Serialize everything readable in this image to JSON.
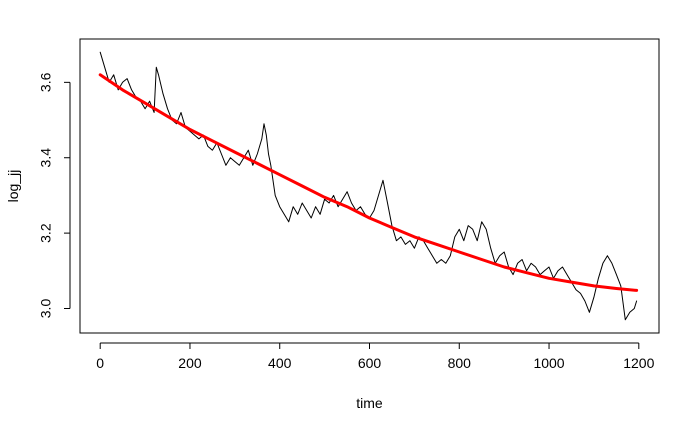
{
  "chart_data": {
    "type": "line",
    "title": "",
    "xlabel": "time",
    "ylabel": "log_jj",
    "xlim": [
      -45,
      1245
    ],
    "ylim": [
      2.935,
      3.715
    ],
    "xticks": [
      0,
      200,
      400,
      600,
      800,
      1000,
      1200
    ],
    "yticks": [
      3.0,
      3.2,
      3.4,
      3.6
    ],
    "ytick_labels": [
      "3.0",
      "3.2",
      "3.4",
      "3.6"
    ],
    "grid": false,
    "legend": "none",
    "series": [
      {
        "style": "thin-line",
        "color": "#000000",
        "x": [
          0,
          10,
          20,
          30,
          40,
          50,
          60,
          70,
          80,
          90,
          100,
          110,
          120,
          125,
          130,
          140,
          150,
          160,
          170,
          180,
          190,
          200,
          210,
          220,
          230,
          240,
          250,
          260,
          270,
          280,
          290,
          300,
          310,
          320,
          330,
          340,
          350,
          360,
          365,
          370,
          375,
          380,
          390,
          400,
          410,
          420,
          430,
          440,
          450,
          460,
          470,
          480,
          490,
          500,
          510,
          520,
          530,
          540,
          550,
          560,
          570,
          580,
          590,
          600,
          610,
          620,
          630,
          640,
          650,
          660,
          670,
          680,
          690,
          700,
          710,
          720,
          730,
          740,
          750,
          760,
          770,
          780,
          790,
          800,
          810,
          820,
          830,
          840,
          850,
          860,
          870,
          880,
          890,
          900,
          910,
          920,
          930,
          940,
          950,
          960,
          970,
          980,
          990,
          1000,
          1010,
          1020,
          1030,
          1040,
          1050,
          1060,
          1070,
          1080,
          1090,
          1100,
          1110,
          1120,
          1130,
          1140,
          1150,
          1160,
          1170,
          1180,
          1190,
          1195
        ],
        "y": [
          3.68,
          3.64,
          3.6,
          3.62,
          3.58,
          3.6,
          3.61,
          3.58,
          3.56,
          3.55,
          3.53,
          3.55,
          3.52,
          3.64,
          3.62,
          3.57,
          3.53,
          3.5,
          3.49,
          3.52,
          3.48,
          3.47,
          3.46,
          3.45,
          3.46,
          3.43,
          3.42,
          3.44,
          3.41,
          3.38,
          3.4,
          3.39,
          3.38,
          3.4,
          3.42,
          3.38,
          3.41,
          3.45,
          3.49,
          3.46,
          3.41,
          3.38,
          3.3,
          3.27,
          3.25,
          3.23,
          3.27,
          3.25,
          3.28,
          3.26,
          3.24,
          3.27,
          3.25,
          3.29,
          3.28,
          3.3,
          3.27,
          3.29,
          3.31,
          3.28,
          3.26,
          3.27,
          3.25,
          3.24,
          3.26,
          3.3,
          3.34,
          3.28,
          3.22,
          3.18,
          3.19,
          3.17,
          3.18,
          3.16,
          3.19,
          3.18,
          3.16,
          3.14,
          3.12,
          3.13,
          3.12,
          3.14,
          3.19,
          3.21,
          3.18,
          3.22,
          3.21,
          3.18,
          3.23,
          3.21,
          3.16,
          3.12,
          3.14,
          3.15,
          3.11,
          3.09,
          3.12,
          3.13,
          3.1,
          3.12,
          3.11,
          3.09,
          3.1,
          3.11,
          3.08,
          3.1,
          3.11,
          3.09,
          3.07,
          3.05,
          3.04,
          3.02,
          2.99,
          3.03,
          3.08,
          3.12,
          3.14,
          3.12,
          3.09,
          3.06,
          2.97,
          2.99,
          3.0,
          3.02
        ]
      },
      {
        "style": "thick-line",
        "color": "#ff0000",
        "x": [
          0,
          50,
          100,
          150,
          200,
          250,
          300,
          350,
          400,
          450,
          500,
          550,
          600,
          650,
          700,
          750,
          800,
          850,
          900,
          950,
          1000,
          1050,
          1100,
          1150,
          1195
        ],
        "y": [
          3.62,
          3.58,
          3.545,
          3.51,
          3.475,
          3.445,
          3.415,
          3.385,
          3.355,
          3.325,
          3.295,
          3.27,
          3.24,
          3.215,
          3.19,
          3.17,
          3.15,
          3.13,
          3.11,
          3.095,
          3.08,
          3.07,
          3.06,
          3.053,
          3.048
        ]
      }
    ]
  }
}
